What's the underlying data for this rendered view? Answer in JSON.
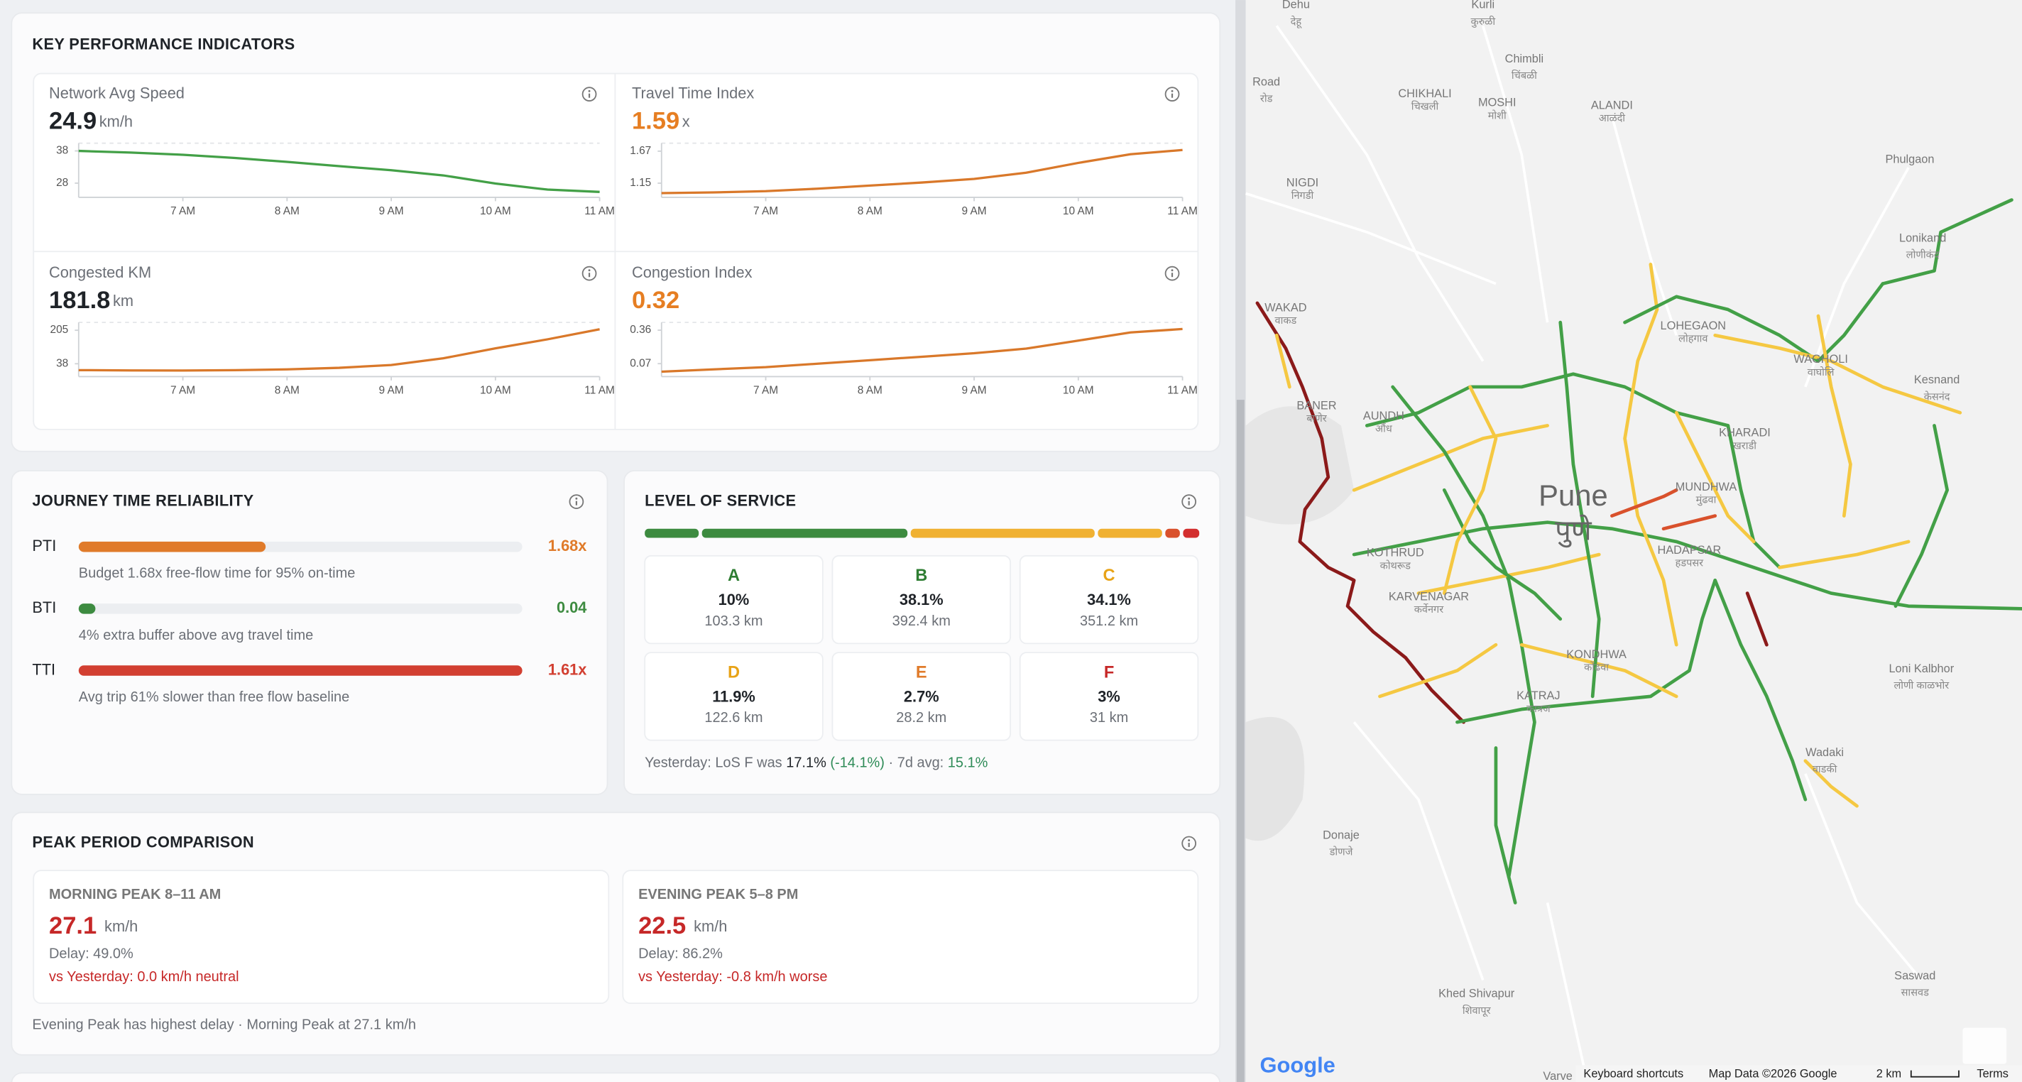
{
  "kpi": {
    "title": "KEY PERFORMANCE INDICATORS",
    "cards": [
      {
        "label": "Network Avg Speed",
        "value": 24.9,
        "unit": "km/h",
        "color": "#1f2328",
        "chart": {
          "type": "line",
          "x": [
            6,
            6.5,
            7,
            7.5,
            8,
            8.5,
            9,
            9.5,
            10,
            10.5,
            11
          ],
          "values": [
            38,
            37.5,
            36.8,
            35.8,
            34.6,
            33.3,
            32,
            30.4,
            27.9,
            26,
            25.3
          ],
          "color": "#43a047",
          "xlim": [
            6,
            11
          ],
          "xticks": [
            {
              "value": 7,
              "label": "7 AM"
            },
            {
              "value": 8,
              "label": "8 AM"
            },
            {
              "value": 9,
              "label": "9 AM"
            },
            {
              "value": 10,
              "label": "10 AM"
            },
            {
              "value": 11,
              "label": "11 AM"
            }
          ],
          "ylim": [
            23.6,
            40.4
          ],
          "yticks": [
            28,
            38
          ]
        }
      },
      {
        "label": "Travel Time Index",
        "value": 1.59,
        "unit": "x",
        "color": "#e67e22",
        "chart": {
          "type": "line",
          "x": [
            6,
            6.5,
            7,
            7.5,
            8,
            8.5,
            9,
            9.5,
            10,
            10.5,
            11
          ],
          "values": [
            0.99,
            1.0,
            1.02,
            1.06,
            1.11,
            1.16,
            1.22,
            1.32,
            1.48,
            1.62,
            1.69
          ],
          "color": "#d9782a",
          "xlim": [
            6,
            11
          ],
          "xticks": [
            {
              "value": 7,
              "label": "7 AM"
            },
            {
              "value": 8,
              "label": "8 AM"
            },
            {
              "value": 9,
              "label": "9 AM"
            },
            {
              "value": 10,
              "label": "10 AM"
            },
            {
              "value": 11,
              "label": "11 AM"
            }
          ],
          "ylim": [
            0.92,
            1.8
          ],
          "yticks": [
            1.15,
            1.67
          ]
        }
      },
      {
        "label": "Congested KM",
        "value": 181.8,
        "unit": "km",
        "color": "#1f2328",
        "chart": {
          "type": "line",
          "x": [
            6,
            6.5,
            7,
            7.5,
            8,
            8.5,
            9,
            9.5,
            10,
            10.5,
            11
          ],
          "values": [
            6,
            5,
            4,
            6,
            10,
            18,
            32,
            65,
            115,
            160,
            210
          ],
          "color": "#d9782a",
          "xlim": [
            6,
            11
          ],
          "xticks": [
            {
              "value": 7,
              "label": "7 AM"
            },
            {
              "value": 8,
              "label": "8 AM"
            },
            {
              "value": 9,
              "label": "9 AM"
            },
            {
              "value": 10,
              "label": "10 AM"
            },
            {
              "value": 11,
              "label": "11 AM"
            }
          ],
          "ylim": [
            -26,
            244
          ],
          "yticks": [
            38,
            205
          ]
        }
      },
      {
        "label": "Congestion Index",
        "value": 0.32,
        "unit": "",
        "color": "#e67e22",
        "chart": {
          "type": "line",
          "x": [
            6,
            6.5,
            7,
            7.5,
            8,
            8.5,
            9,
            9.5,
            10,
            10.5,
            11
          ],
          "values": [
            0,
            0.02,
            0.04,
            0.07,
            0.1,
            0.13,
            0.16,
            0.2,
            0.27,
            0.34,
            0.37
          ],
          "color": "#d9782a",
          "xlim": [
            6,
            11
          ],
          "xticks": [
            {
              "value": 7,
              "label": "7 AM"
            },
            {
              "value": 8,
              "label": "8 AM"
            },
            {
              "value": 9,
              "label": "9 AM"
            },
            {
              "value": 10,
              "label": "10 AM"
            },
            {
              "value": 11,
              "label": "11 AM"
            }
          ],
          "ylim": [
            -0.042,
            0.427
          ],
          "yticks": [
            0.07,
            0.36
          ]
        }
      }
    ]
  },
  "journey": {
    "title": "JOURNEY TIME RELIABILITY",
    "rows": [
      {
        "label": "PTI",
        "value": 1.68,
        "value_label": "1.68x",
        "description": "Budget 1.68x free-flow time for 95% on-time",
        "color": "#e07b2a"
      },
      {
        "label": "BTI",
        "value": 0.04,
        "value_label": "0.04",
        "description": "4% extra buffer above avg travel time",
        "color": "#3d8b40"
      },
      {
        "label": "TTI",
        "value": 1.61,
        "value_label": "1.61x",
        "description": "Avg trip 61% slower than free flow baseline",
        "color": "#d23f31"
      }
    ]
  },
  "los": {
    "title": "LEVEL OF SERVICE",
    "levels": [
      {
        "grade": "A",
        "percent": 10,
        "percent_label": "10%",
        "km": 103.3,
        "km_label": "103.3 km",
        "color": "#3d8b40",
        "text_color": "#2e7d32"
      },
      {
        "grade": "B",
        "percent": 38.1,
        "percent_label": "38.1%",
        "km": 392.4,
        "km_label": "392.4 km",
        "color": "#3d8b40",
        "text_color": "#2e7d32"
      },
      {
        "grade": "C",
        "percent": 34.1,
        "percent_label": "34.1%",
        "km": 351.2,
        "km_label": "351.2 km",
        "color": "#f0b132",
        "text_color": "#e8a317"
      },
      {
        "grade": "D",
        "percent": 11.9,
        "percent_label": "11.9%",
        "km": 122.6,
        "km_label": "122.6 km",
        "color": "#f0b132",
        "text_color": "#e8a317"
      },
      {
        "grade": "E",
        "percent": 2.7,
        "percent_label": "2.7%",
        "km": 28.2,
        "km_label": "28.2 km",
        "color": "#d9512c",
        "text_color": "#e07b2a"
      },
      {
        "grade": "F",
        "percent": 3,
        "percent_label": "3%",
        "km": 31,
        "km_label": "31 km",
        "color": "#d32f2f",
        "text_color": "#c62828"
      }
    ],
    "footer": {
      "prefix": "Yesterday: LoS F was ",
      "value": "17.1%",
      "change": " (-14.1%)",
      "separator": " · 7d avg: ",
      "average": "15.1%"
    }
  },
  "peak": {
    "title": "PEAK PERIOD COMPARISON",
    "periods": [
      {
        "label": "MORNING PEAK 8–11 AM",
        "speed": 27.1,
        "unit": "km/h",
        "delay": "Delay: 49.0%",
        "comparison": "vs Yesterday: 0.0 km/h neutral"
      },
      {
        "label": "EVENING PEAK 5–8 PM",
        "speed": 22.5,
        "unit": "km/h",
        "delay": "Delay: 86.2%",
        "comparison": "vs Yesterday: -0.8 km/h worse"
      }
    ],
    "footer": "Evening Peak has highest delay · Morning Peak at 27.1 km/h"
  },
  "map": {
    "city": {
      "name": "Pune",
      "local": "पुणे"
    },
    "labels": [
      {
        "name": "Dehu",
        "local": "देहू"
      },
      {
        "name": "Kurli",
        "local": "कुरुळी"
      },
      {
        "name": "Road",
        "local": "रोड"
      },
      {
        "name": "Chimbli",
        "local": "चिंबळी"
      },
      {
        "name": "CHIKHALI",
        "local": "चिखली"
      },
      {
        "name": "MOSHI",
        "local": "मोशी"
      },
      {
        "name": "ALANDI",
        "local": "आळंदी"
      },
      {
        "name": "Phulgaon"
      },
      {
        "name": "NIGDI",
        "local": "निगडी"
      },
      {
        "name": "Lonikand",
        "local": "लोणीकंद"
      },
      {
        "name": "WAKAD",
        "local": "वाकड"
      },
      {
        "name": "LOHEGAON",
        "local": "लोहगाव"
      },
      {
        "name": "WAGHOLI",
        "local": "वाघोलि"
      },
      {
        "name": "Kesnand",
        "local": "केसनंद"
      },
      {
        "name": "BANER",
        "local": "बाणेर"
      },
      {
        "name": "AUNDH",
        "local": "औंध"
      },
      {
        "name": "KHARADI",
        "local": "खराडी"
      },
      {
        "name": "MUNDHWA",
        "local": "मुंढवा"
      },
      {
        "name": "KOTHRUD",
        "local": "कोथरूड"
      },
      {
        "name": "HADAPSAR",
        "local": "हडपसर"
      },
      {
        "name": "KARVENAGAR",
        "local": "कर्वेनगर"
      },
      {
        "name": "KONDHWA",
        "local": "कोंढवा"
      },
      {
        "name": "Loni Kalbhor",
        "local": "लोणी काळभोर"
      },
      {
        "name": "KATRAJ",
        "local": "कात्रज"
      },
      {
        "name": "Wadaki",
        "local": "वाडकी"
      },
      {
        "name": "Donaje",
        "local": "डोणजे"
      },
      {
        "name": "Saswad",
        "local": "सासवड"
      },
      {
        "name": "Khed Shivapur",
        "local": "शिवापूर"
      },
      {
        "name": "Varve"
      }
    ],
    "footer": {
      "logo": "Google",
      "shortcuts": "Keyboard shortcuts",
      "data": "Map Data ©2026 Google",
      "scale": "2 km",
      "terms": "Terms"
    }
  }
}
